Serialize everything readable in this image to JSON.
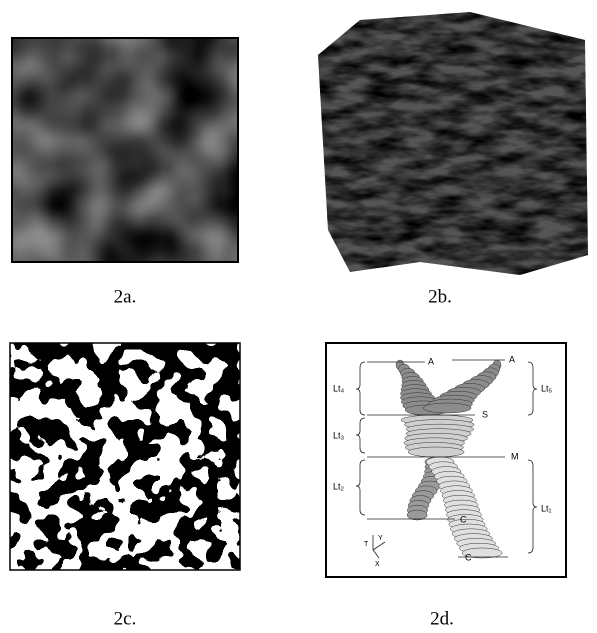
{
  "captions": [
    "2a.",
    "2b.",
    "2c.",
    "2d."
  ],
  "diagram": {
    "labels": {
      "a_left": "A",
      "a_right": "A",
      "s": "S",
      "m": "M",
      "c_left": "C",
      "c_right": "C",
      "lt4": "Lt₄",
      "lt5": "Lt₅",
      "lt3": "Lt₃",
      "lt2": "Lt₂",
      "lt1": "Lt₁",
      "axis_t": "T",
      "axis_y": "Y",
      "axis_x": "X"
    }
  }
}
